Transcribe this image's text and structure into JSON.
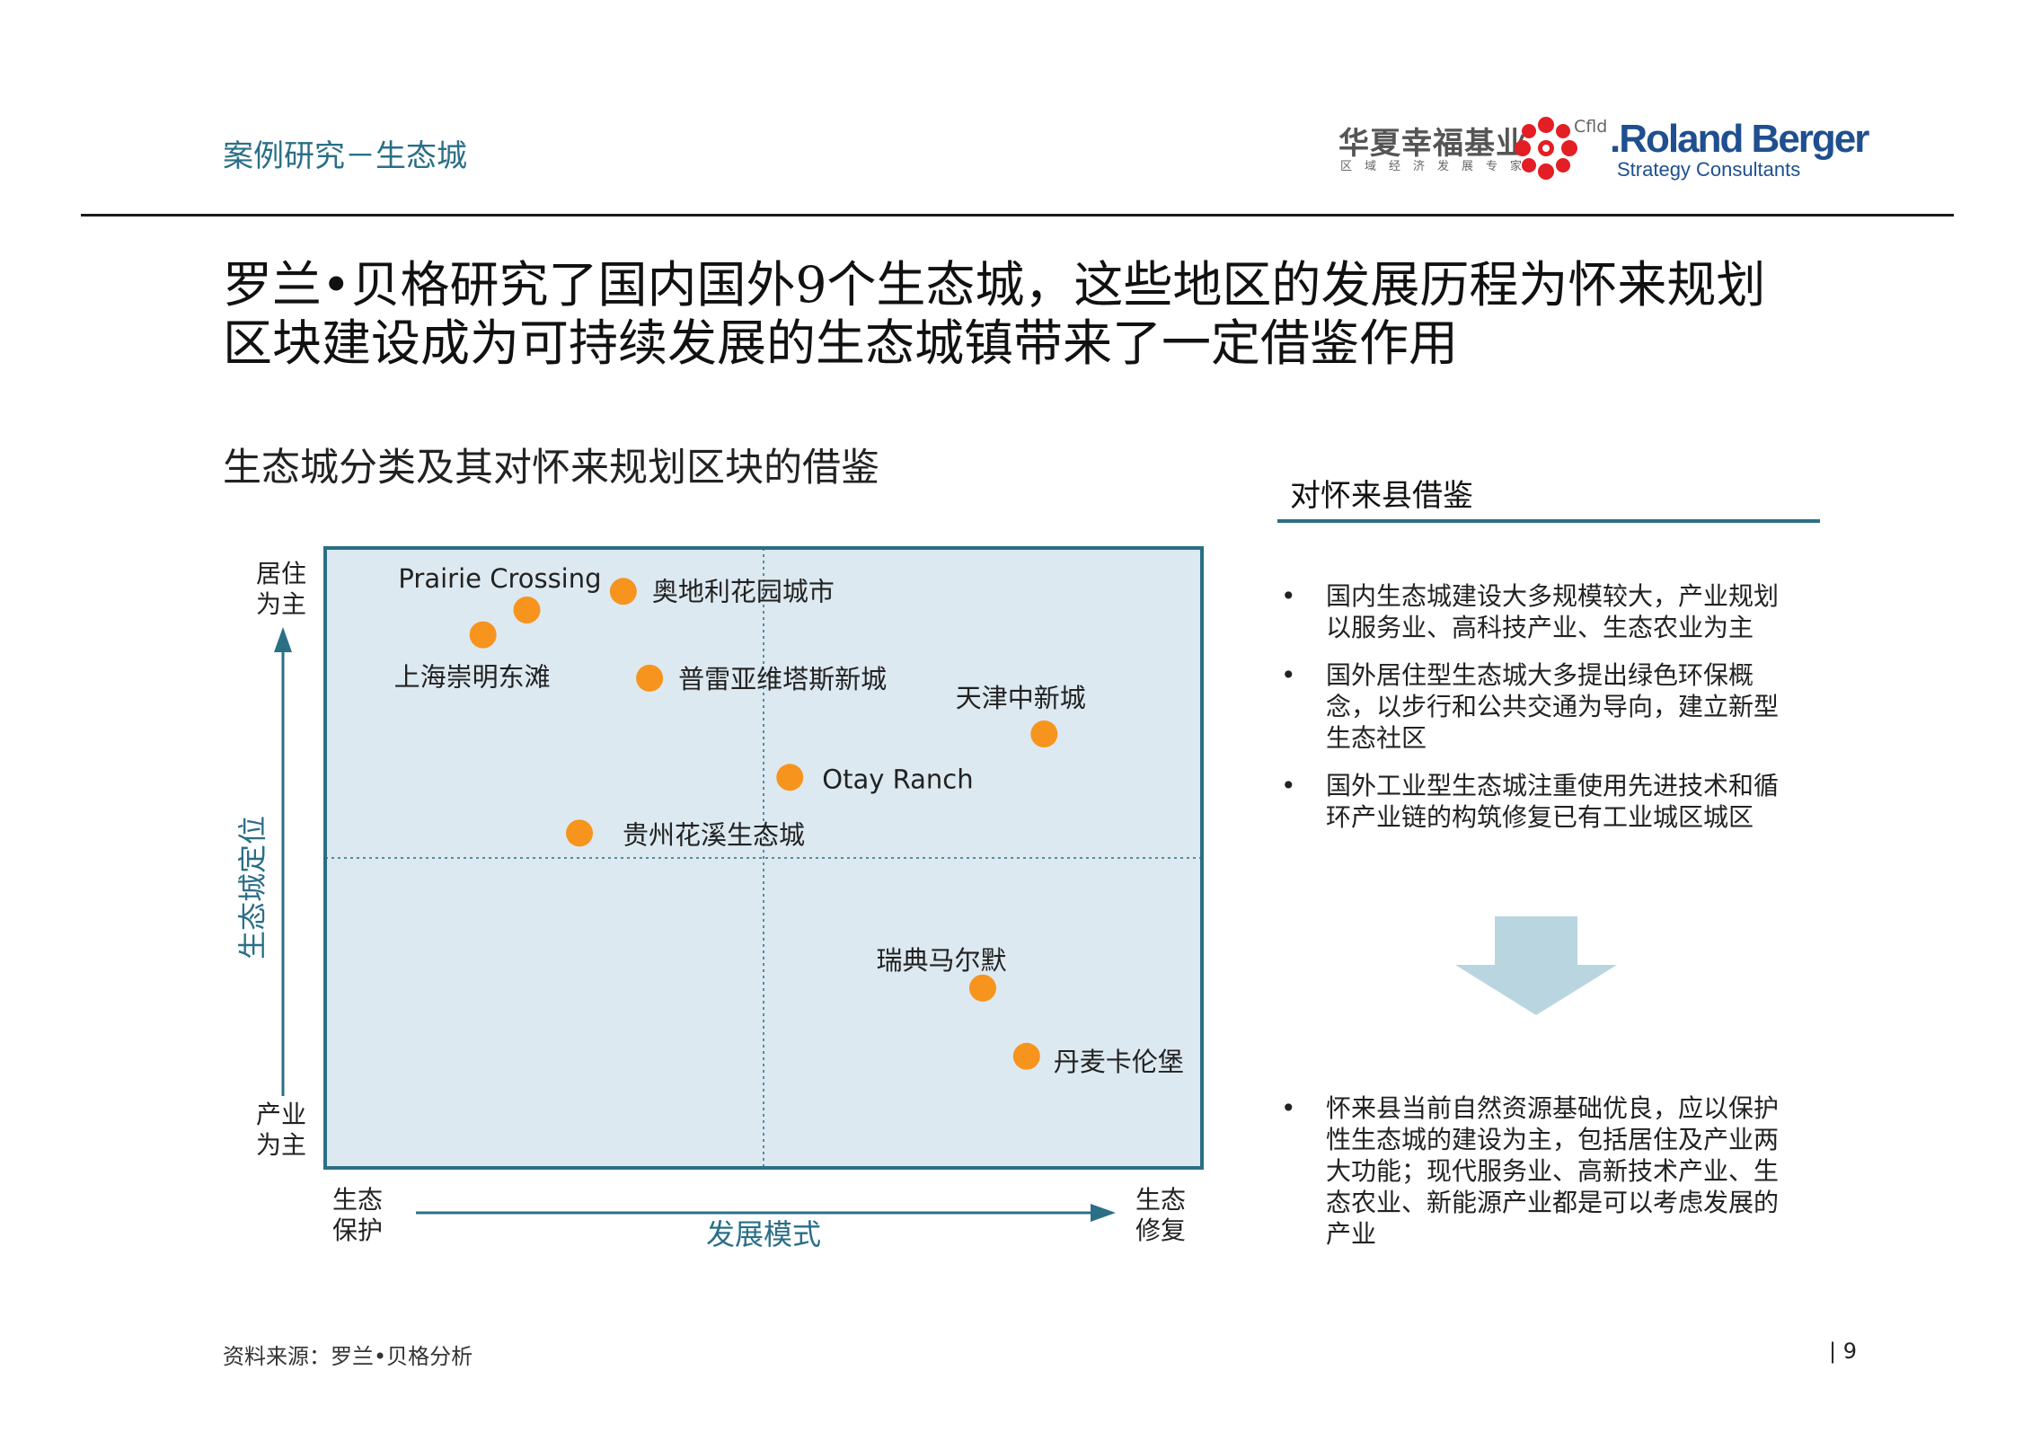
{
  "header": {
    "section_label": "案例研究－生态城",
    "logo_cn": "华夏幸福基业",
    "logo_cn_sub": "区域经济发展专家",
    "logo_cfld": "Cfld",
    "logo_rb": ".Roland Berger",
    "logo_rb_sub": "Strategy Consultants"
  },
  "headline": {
    "line1": "罗兰•贝格研究了国内国外9个生态城，这些地区的发展历程为怀来规划",
    "line2": "区块建设成为可持续发展的生态城镇带来了一定借鉴作用"
  },
  "chart_title": "生态城分类及其对怀来规划区块的借鉴",
  "chart_data": {
    "type": "scatter",
    "xlabel": "发展模式",
    "ylabel": "生态城定位",
    "x_left_label": "生态保护",
    "x_right_label": "生态修复",
    "y_top_label": "居住为主",
    "y_bottom_label": "产业为主",
    "xlim": [
      0,
      10
    ],
    "ylim": [
      0,
      10
    ],
    "grid": "quadrant dividers",
    "points": [
      {
        "label": "Prairie Crossing",
        "x": 2.3,
        "y": 9.0
      },
      {
        "label": "奥地利花园城市",
        "x": 3.4,
        "y": 9.3
      },
      {
        "label": "上海崇明东滩",
        "x": 1.8,
        "y": 8.6
      },
      {
        "label": "普雷亚维塔斯新城",
        "x": 3.7,
        "y": 7.9
      },
      {
        "label": "天津中新城",
        "x": 8.2,
        "y": 7.0
      },
      {
        "label": "Otay Ranch",
        "x": 5.3,
        "y": 6.3
      },
      {
        "label": "贵州花溪生态城",
        "x": 2.9,
        "y": 5.4
      },
      {
        "label": "瑞典马尔默",
        "x": 7.5,
        "y": 2.9
      },
      {
        "label": "丹麦卡伦堡",
        "x": 8.0,
        "y": 1.8
      }
    ],
    "colors": {
      "point": "#f7941d",
      "plot_bg": "#dde9f0",
      "border": "#2a6f86",
      "axis": "#2a6f86"
    }
  },
  "panel": {
    "title": "对怀来县借鉴",
    "bullet_glyph": "•",
    "bullets_top": [
      "国内生态城建设大多规模较大，产业规划以服务业、高科技产业、生态农业为主",
      "国外居住型生态城大多提出绿色环保概念，以步行和公共交通为导向，建立新型生态社区",
      "国外工业型生态城注重使用先进技术和循环产业链的构筑修复已有工业城区城区"
    ],
    "bullets_bottom": [
      "怀来县当前自然资源基础优良，应以保护性生态城的建设为主，包括居住及产业两大功能；现代服务业、高新技术产业、生态农业、新能源产业都是可以考虑发展的产业"
    ],
    "arrow_color": "#b9d5e0"
  },
  "footer": {
    "source": "资料来源：罗兰•贝格分析",
    "page_number": "9"
  }
}
